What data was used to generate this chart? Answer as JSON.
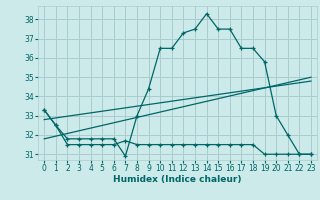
{
  "xlabel": "Humidex (Indice chaleur)",
  "bg_color": "#cceaea",
  "grid_color": "#aacccc",
  "line_color": "#006666",
  "xlim": [
    -0.5,
    23.5
  ],
  "ylim": [
    30.7,
    38.7
  ],
  "yticks": [
    31,
    32,
    33,
    34,
    35,
    36,
    37,
    38
  ],
  "xticks": [
    0,
    1,
    2,
    3,
    4,
    5,
    6,
    7,
    8,
    9,
    10,
    11,
    12,
    13,
    14,
    15,
    16,
    17,
    18,
    19,
    20,
    21,
    22,
    23
  ],
  "series_flat": {
    "x": [
      0,
      1,
      2,
      3,
      4,
      5,
      6,
      7,
      8,
      9,
      10,
      11,
      12,
      13,
      14,
      15,
      16,
      17,
      18,
      19,
      20,
      21,
      22,
      23
    ],
    "y": [
      33.3,
      32.5,
      31.5,
      31.5,
      31.5,
      31.5,
      31.5,
      31.7,
      31.5,
      31.5,
      31.5,
      31.5,
      31.5,
      31.5,
      31.5,
      31.5,
      31.5,
      31.5,
      31.5,
      31.0,
      31.0,
      31.0,
      31.0,
      31.0
    ]
  },
  "series_main": {
    "x": [
      0,
      1,
      2,
      3,
      4,
      5,
      6,
      7,
      8,
      9,
      10,
      11,
      12,
      13,
      14,
      15,
      16,
      17,
      18,
      19,
      20,
      21,
      22,
      23
    ],
    "y": [
      33.3,
      32.5,
      31.8,
      31.8,
      31.8,
      31.8,
      31.8,
      30.9,
      33.0,
      34.4,
      36.5,
      36.5,
      37.3,
      37.5,
      38.3,
      37.5,
      37.5,
      36.5,
      36.5,
      35.8,
      33.0,
      32.0,
      31.0,
      31.0
    ]
  },
  "trend1": {
    "x": [
      0,
      23
    ],
    "y": [
      31.8,
      35.0
    ]
  },
  "trend2": {
    "x": [
      0,
      23
    ],
    "y": [
      32.8,
      34.8
    ]
  }
}
